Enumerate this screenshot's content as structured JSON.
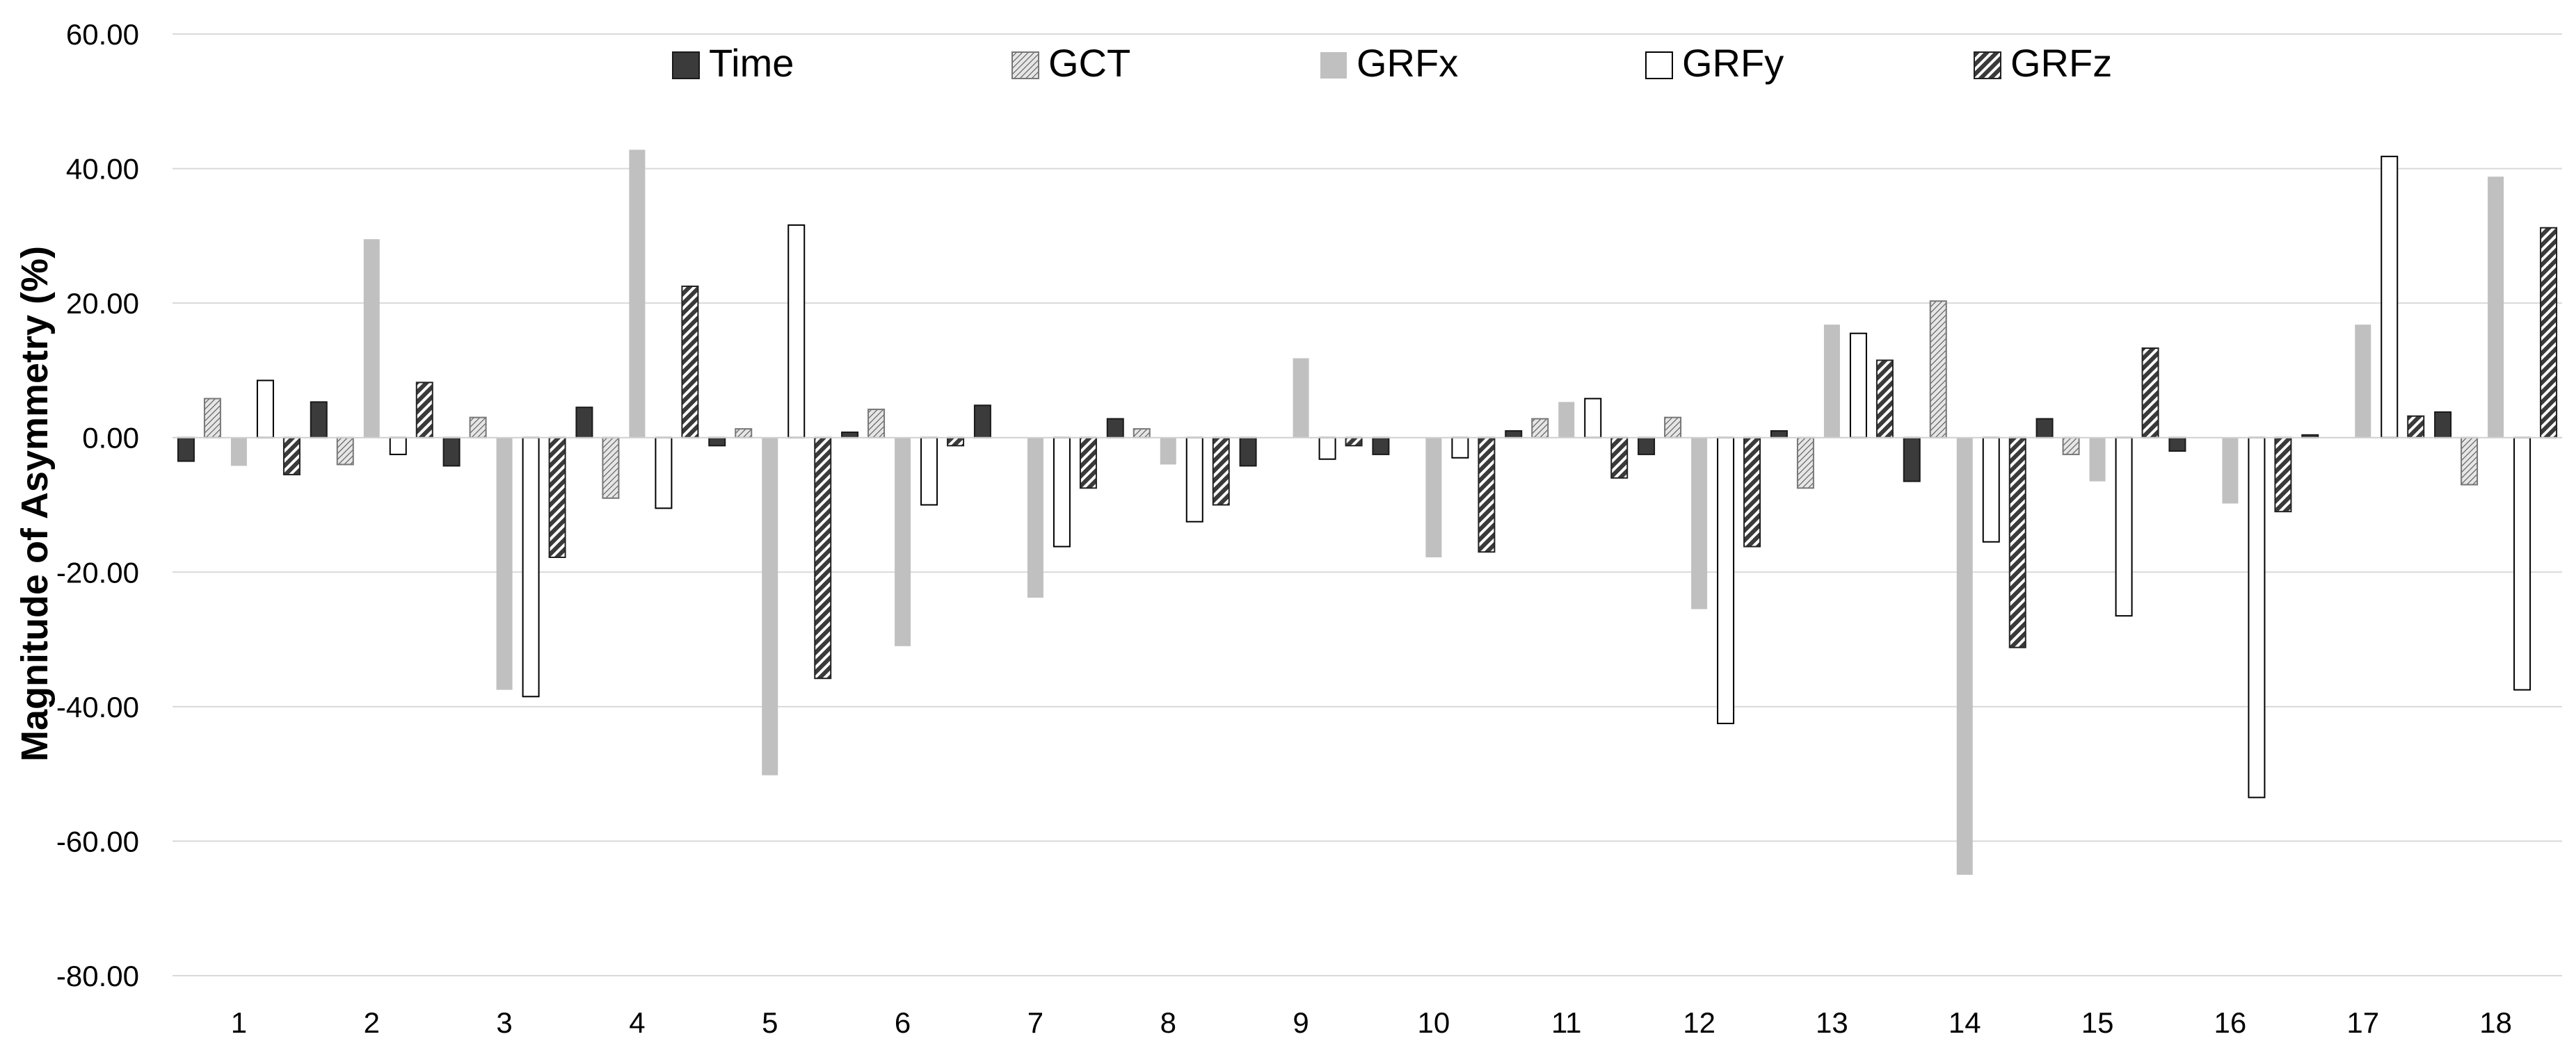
{
  "chart_data": {
    "type": "bar",
    "title": "",
    "xlabel": "",
    "ylabel": "Magnitude of Asymmetry (%)",
    "ylim": [
      -80,
      60
    ],
    "yticks": [
      60,
      40,
      20,
      0,
      -20,
      -40,
      -60,
      -80
    ],
    "ytick_labels": [
      "60.00",
      "40.00",
      "20.00",
      "0.00",
      "-20.00",
      "-40.00",
      "-60.00",
      "-80.00"
    ],
    "grid": true,
    "legend_position": "top-center",
    "categories": [
      "1",
      "2",
      "3",
      "4",
      "5",
      "6",
      "7",
      "8",
      "9",
      "10",
      "11",
      "12",
      "13",
      "14",
      "15",
      "16",
      "17",
      "18"
    ],
    "series": [
      {
        "name": "Time",
        "fill": "dark",
        "values": [
          -3.5,
          5.3,
          -4.2,
          4.5,
          -1.2,
          0.8,
          4.8,
          2.8,
          -4.2,
          -2.5,
          1.0,
          -2.5,
          1.0,
          -6.5,
          2.8,
          -2.0,
          0.4,
          3.8
        ]
      },
      {
        "name": "GCT",
        "fill": "hatch-fine",
        "values": [
          5.8,
          -4.0,
          3.0,
          -9.0,
          1.3,
          4.2,
          0.0,
          1.3,
          0.0,
          0.0,
          2.8,
          3.0,
          -7.5,
          20.3,
          -2.5,
          0.0,
          0.0,
          -7.0
        ]
      },
      {
        "name": "GRFx",
        "fill": "light-gray",
        "values": [
          -4.2,
          29.5,
          -37.5,
          42.8,
          -50.2,
          -31.0,
          -23.8,
          -4.0,
          11.8,
          -17.8,
          5.3,
          -25.5,
          16.8,
          -65.0,
          -6.5,
          -9.8,
          16.8,
          38.8
        ]
      },
      {
        "name": "GRFy",
        "fill": "white",
        "values": [
          8.5,
          -2.5,
          -38.5,
          -10.5,
          31.6,
          -10.0,
          -16.2,
          -12.5,
          -3.2,
          -3.0,
          5.8,
          -42.5,
          15.5,
          -15.5,
          -26.5,
          -53.5,
          41.8,
          -37.5
        ]
      },
      {
        "name": "GRFz",
        "fill": "hatch-bold",
        "values": [
          -5.5,
          8.2,
          -17.8,
          22.5,
          -35.8,
          -1.2,
          -7.5,
          -10.0,
          -1.2,
          -17.0,
          -6.0,
          -16.2,
          11.5,
          -31.2,
          13.3,
          -11.0,
          3.2,
          31.2
        ]
      }
    ]
  }
}
